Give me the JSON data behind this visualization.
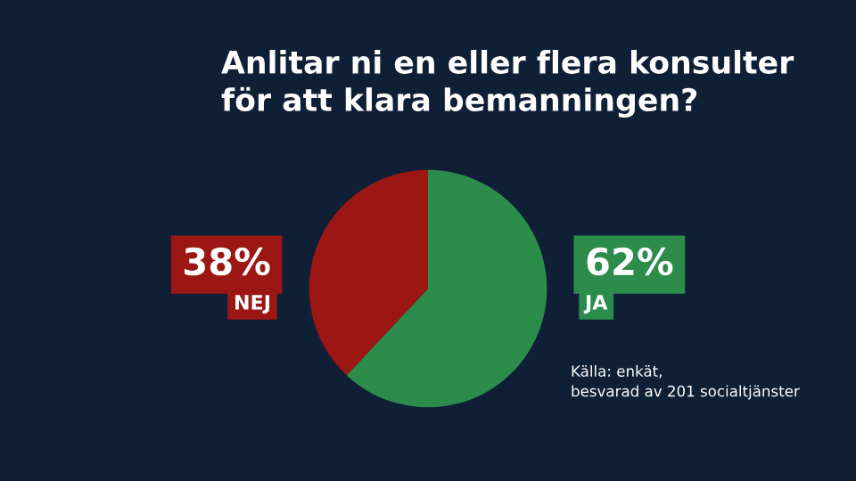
{
  "chart_data": {
    "type": "pie",
    "title": "Anlitar ni en eller flera konsulter\nför att klara bemanningen?",
    "categories": [
      "JA",
      "NEJ"
    ],
    "values": [
      62,
      38
    ],
    "colors": [
      "#2c8c4c",
      "#9c1714"
    ],
    "value_labels": [
      "62%",
      "38%"
    ],
    "annotations": [
      "Källa: enkät,\nbesvarad av 201 socialtjänster"
    ]
  }
}
